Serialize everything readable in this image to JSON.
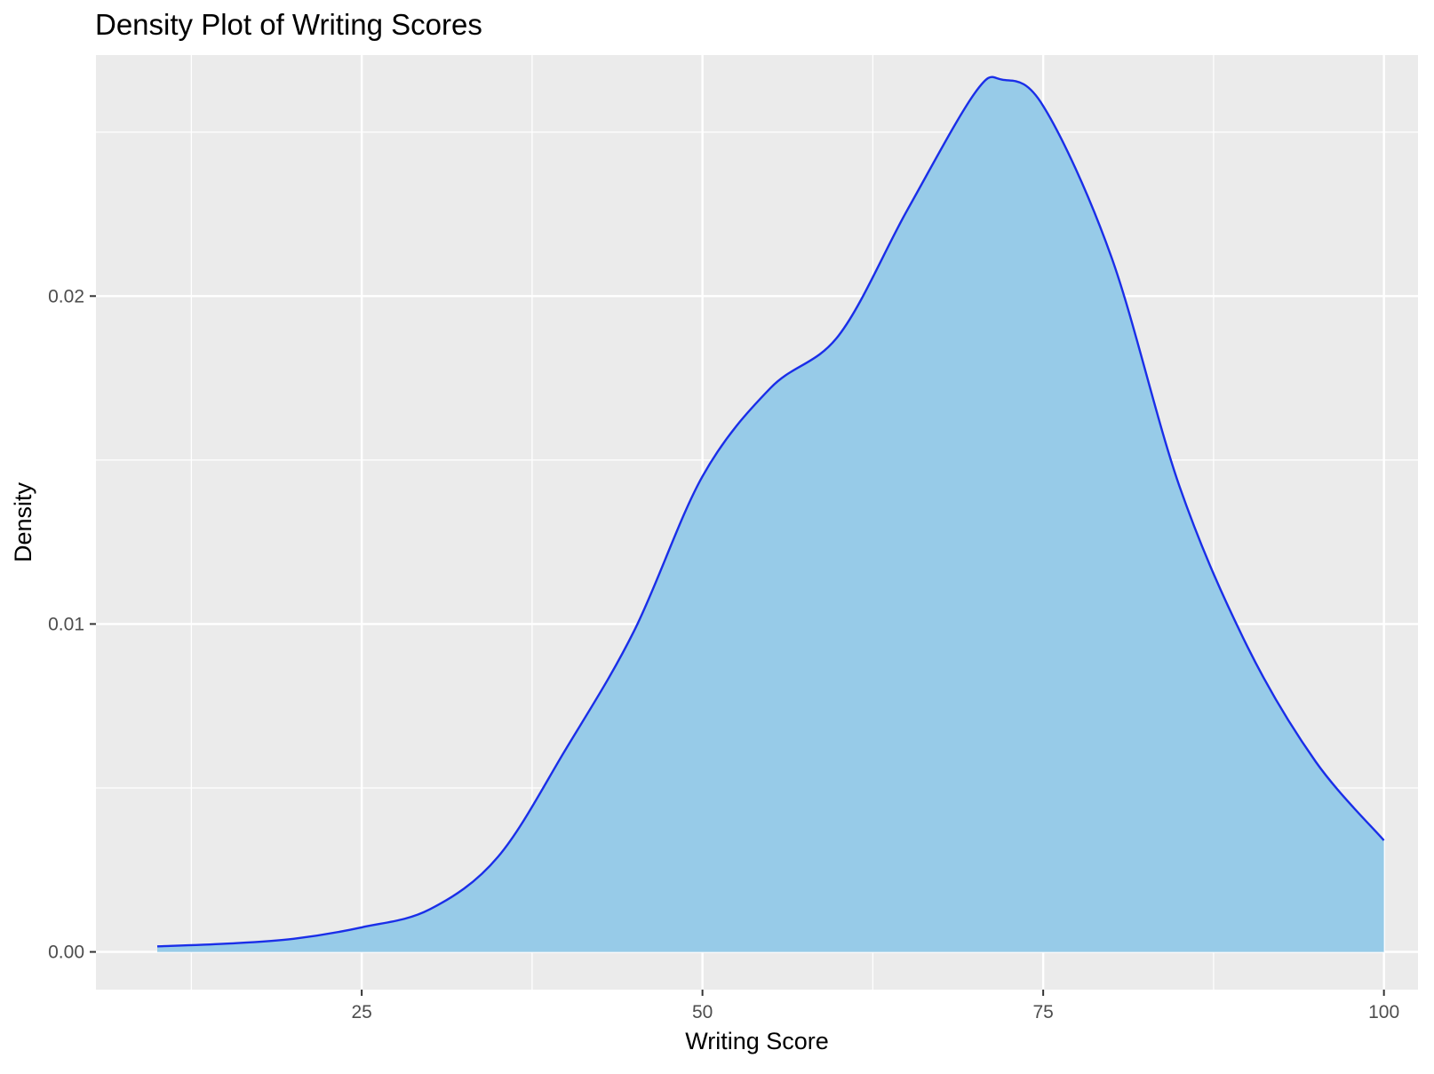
{
  "chart_data": {
    "type": "area",
    "title": "Density Plot of Writing Scores",
    "xlabel": "Writing Score",
    "ylabel": "Density",
    "xlim": [
      5.5,
      102.5
    ],
    "ylim": [
      -0.00115,
      0.02735
    ],
    "x_ticks": [
      25,
      50,
      75,
      100
    ],
    "x_tick_labels": [
      "25",
      "50",
      "75",
      "100"
    ],
    "x_minor_gridlines": [
      12.5,
      37.5,
      62.5,
      87.5
    ],
    "y_ticks": [
      0.0,
      0.01,
      0.02
    ],
    "y_tick_labels": [
      "0.00",
      "0.01",
      "0.02"
    ],
    "y_minor_gridlines": [
      0.005,
      0.015,
      0.025
    ],
    "grid": true,
    "panel_background": "#ebebeb",
    "fill_color": "#97cbe8",
    "line_color": "#1a2ee8",
    "series": [
      {
        "x": [
          10,
          15,
          20,
          25,
          30,
          35,
          40,
          45,
          50,
          55,
          60,
          65,
          70,
          72,
          75,
          80,
          85,
          90,
          95,
          100
        ],
        "y": [
          0.00017,
          0.00025,
          0.0004,
          0.00075,
          0.0013,
          0.0029,
          0.0062,
          0.0098,
          0.0145,
          0.0172,
          0.0188,
          0.0226,
          0.0262,
          0.0266,
          0.0258,
          0.0212,
          0.0142,
          0.0093,
          0.0058,
          0.0034
        ]
      }
    ]
  }
}
